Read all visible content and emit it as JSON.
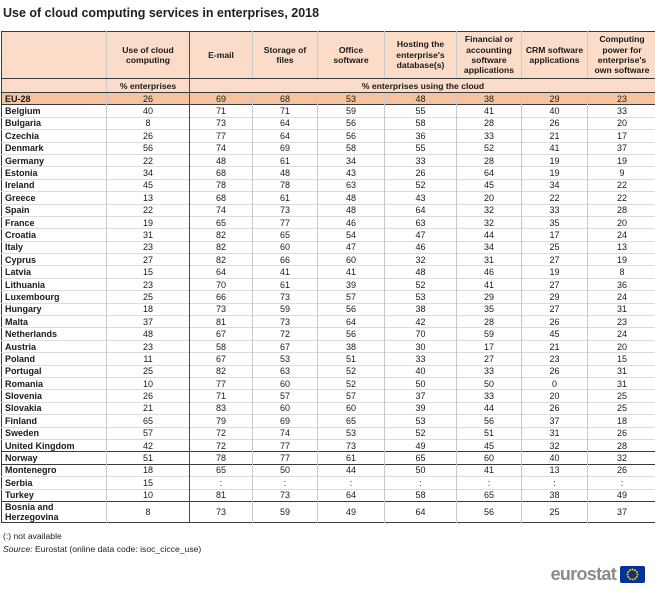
{
  "chart_data": {
    "type": "table",
    "title": "Use of cloud computing services in enterprises, 2018",
    "columns": [
      "",
      "Use of cloud computing",
      "E-mail",
      "Storage of files",
      "Office software",
      "Hosting the enterprise's database(s)",
      "Financial or accounting software applications",
      "CRM software applications",
      "Computing power for enterprise's own software"
    ],
    "unit_row": {
      "enterprises": "% enterprises",
      "using_cloud": "% enterprises using the cloud"
    },
    "not_available": ":",
    "group_separator_after_rows": [
      0,
      28,
      29,
      32,
      33
    ],
    "rows": [
      {
        "name": "EU-28",
        "highlight": true,
        "values": [
          26,
          69,
          68,
          53,
          48,
          38,
          29,
          23
        ]
      },
      {
        "name": "Belgium",
        "values": [
          40,
          71,
          71,
          59,
          55,
          41,
          40,
          33
        ]
      },
      {
        "name": "Bulgaria",
        "values": [
          8,
          73,
          64,
          56,
          58,
          28,
          26,
          20
        ]
      },
      {
        "name": "Czechia",
        "values": [
          26,
          77,
          64,
          56,
          36,
          33,
          21,
          17
        ]
      },
      {
        "name": "Denmark",
        "values": [
          56,
          74,
          69,
          58,
          55,
          52,
          41,
          37
        ]
      },
      {
        "name": "Germany",
        "values": [
          22,
          48,
          61,
          34,
          33,
          28,
          19,
          19
        ]
      },
      {
        "name": "Estonia",
        "values": [
          34,
          68,
          48,
          43,
          26,
          64,
          19,
          9
        ]
      },
      {
        "name": "Ireland",
        "values": [
          45,
          78,
          78,
          63,
          52,
          45,
          34,
          22
        ]
      },
      {
        "name": "Greece",
        "values": [
          13,
          68,
          61,
          48,
          43,
          20,
          22,
          22
        ]
      },
      {
        "name": "Spain",
        "values": [
          22,
          74,
          73,
          48,
          64,
          32,
          33,
          28
        ]
      },
      {
        "name": "France",
        "values": [
          19,
          65,
          77,
          46,
          63,
          32,
          35,
          20
        ]
      },
      {
        "name": "Croatia",
        "values": [
          31,
          82,
          65,
          54,
          47,
          44,
          17,
          24
        ]
      },
      {
        "name": "Italy",
        "values": [
          23,
          82,
          60,
          47,
          46,
          34,
          25,
          13
        ]
      },
      {
        "name": "Cyprus",
        "values": [
          27,
          82,
          66,
          60,
          32,
          31,
          27,
          19
        ]
      },
      {
        "name": "Latvia",
        "values": [
          15,
          64,
          41,
          41,
          48,
          46,
          19,
          8
        ]
      },
      {
        "name": "Lithuania",
        "values": [
          23,
          70,
          61,
          39,
          52,
          41,
          27,
          36
        ]
      },
      {
        "name": "Luxembourg",
        "values": [
          25,
          66,
          73,
          57,
          53,
          29,
          29,
          24
        ]
      },
      {
        "name": "Hungary",
        "values": [
          18,
          73,
          59,
          56,
          38,
          35,
          27,
          31
        ]
      },
      {
        "name": "Malta",
        "values": [
          37,
          81,
          73,
          64,
          42,
          28,
          26,
          23
        ]
      },
      {
        "name": "Netherlands",
        "values": [
          48,
          67,
          72,
          56,
          70,
          59,
          45,
          24
        ]
      },
      {
        "name": "Austria",
        "values": [
          23,
          58,
          67,
          38,
          30,
          17,
          21,
          20
        ]
      },
      {
        "name": "Poland",
        "values": [
          11,
          67,
          53,
          51,
          33,
          27,
          23,
          15
        ]
      },
      {
        "name": "Portugal",
        "values": [
          25,
          82,
          63,
          52,
          40,
          33,
          26,
          31
        ]
      },
      {
        "name": "Romania",
        "values": [
          10,
          77,
          60,
          52,
          50,
          50,
          0,
          31
        ]
      },
      {
        "name": "Slovenia",
        "values": [
          26,
          71,
          57,
          57,
          37,
          33,
          20,
          25
        ]
      },
      {
        "name": "Slovakia",
        "values": [
          21,
          83,
          60,
          60,
          39,
          44,
          26,
          25
        ]
      },
      {
        "name": "Finland",
        "values": [
          65,
          79,
          69,
          65,
          53,
          56,
          37,
          18
        ]
      },
      {
        "name": "Sweden",
        "values": [
          57,
          72,
          74,
          53,
          52,
          51,
          31,
          26
        ]
      },
      {
        "name": "United Kingdom",
        "values": [
          42,
          72,
          77,
          73,
          49,
          45,
          32,
          28
        ]
      },
      {
        "name": "Norway",
        "values": [
          51,
          78,
          77,
          61,
          65,
          60,
          40,
          32
        ]
      },
      {
        "name": "Montenegro",
        "values": [
          18,
          65,
          50,
          44,
          50,
          41,
          13,
          26
        ]
      },
      {
        "name": "Serbia",
        "values": [
          15,
          ":",
          ":",
          ":",
          ":",
          ":",
          ":",
          ":"
        ]
      },
      {
        "name": "Turkey",
        "values": [
          10,
          81,
          73,
          64,
          58,
          65,
          38,
          49
        ]
      },
      {
        "name": "Bosnia and Herzegovina",
        "values": [
          8,
          73,
          59,
          49,
          64,
          56,
          25,
          37
        ]
      }
    ]
  },
  "footer": {
    "not_available": "(:) not available",
    "source_label": "Source:",
    "source_text": " Eurostat (online data code: isoc_cicce_use)",
    "logo_text": "eurostat"
  },
  "colors": {
    "header_peach": "#FBDCC8",
    "eu28_row_peach": "#F4C4A0",
    "eu_flag_blue": "#003399",
    "star_yellow": "#FFCC00"
  }
}
